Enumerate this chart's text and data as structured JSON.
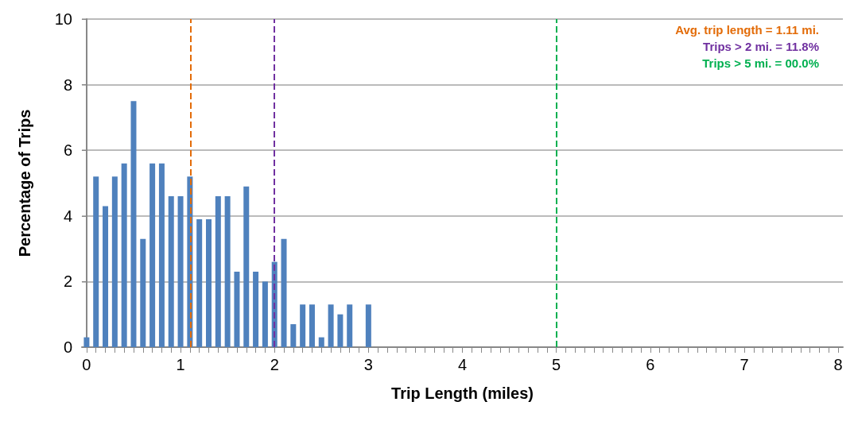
{
  "chart_data": {
    "type": "bar",
    "x": [
      0,
      0.1,
      0.2,
      0.3,
      0.4,
      0.5,
      0.6,
      0.7,
      0.8,
      0.9,
      1,
      1.1,
      1.2,
      1.3,
      1.4,
      1.5,
      1.6,
      1.7,
      1.8,
      1.9,
      2,
      2.1,
      2.2,
      2.3,
      2.4,
      2.5,
      2.6,
      2.7,
      2.8,
      2.9,
      3
    ],
    "values": [
      0.3,
      5.2,
      4.3,
      5.2,
      5.6,
      7.5,
      3.3,
      5.6,
      5.6,
      4.6,
      4.6,
      5.2,
      3.9,
      3.9,
      4.6,
      4.6,
      2.3,
      4.9,
      2.3,
      2.0,
      2.6,
      3.3,
      0.7,
      1.3,
      1.3,
      0.3,
      1.3,
      1.0,
      1.3,
      0,
      1.3
    ],
    "color": "#4f81bd",
    "xlabel": "Trip Length (miles)",
    "ylabel": "Percentage of Trips",
    "xlim": [
      -0.05,
      8.05
    ],
    "ylim": [
      0,
      10
    ],
    "xticks": [
      0,
      {
        "value": 0.1,
        "label": null
      },
      {
        "value": 0.2,
        "label": null
      },
      {
        "value": 0.3,
        "label": null
      },
      {
        "value": 0.4,
        "label": null
      },
      {
        "value": 0.5,
        "label": null
      },
      {
        "value": 0.6,
        "label": null
      },
      {
        "value": 0.7,
        "label": null
      },
      {
        "value": 0.8,
        "label": null
      },
      {
        "value": 0.9,
        "label": null
      },
      1,
      {
        "value": 1.1,
        "label": null
      },
      {
        "value": 1.2,
        "label": null
      },
      {
        "value": 1.3,
        "label": null
      },
      {
        "value": 1.4,
        "label": null
      },
      {
        "value": 1.5,
        "label": null
      },
      {
        "value": 1.6,
        "label": null
      },
      {
        "value": 1.7,
        "label": null
      },
      {
        "value": 1.8,
        "label": null
      },
      {
        "value": 1.9,
        "label": null
      },
      2,
      {
        "value": 2.1,
        "label": null
      },
      {
        "value": 2.2,
        "label": null
      },
      {
        "value": 2.3,
        "label": null
      },
      {
        "value": 2.4,
        "label": null
      },
      {
        "value": 2.5,
        "label": null
      },
      {
        "value": 2.6,
        "label": null
      },
      {
        "value": 2.7,
        "label": null
      },
      {
        "value": 2.8,
        "label": null
      },
      {
        "value": 2.9,
        "label": null
      },
      3,
      {
        "value": 3.1,
        "label": null
      },
      {
        "value": 3.2,
        "label": null
      },
      {
        "value": 3.3,
        "label": null
      },
      {
        "value": 3.4,
        "label": null
      },
      {
        "value": 3.5,
        "label": null
      },
      {
        "value": 3.6,
        "label": null
      },
      {
        "value": 3.7,
        "label": null
      },
      {
        "value": 3.8,
        "label": null
      },
      {
        "value": 3.9,
        "label": null
      },
      4,
      {
        "value": 4.1,
        "label": null
      },
      {
        "value": 4.2,
        "label": null
      },
      {
        "value": 4.3,
        "label": null
      },
      {
        "value": 4.4,
        "label": null
      },
      {
        "value": 4.5,
        "label": null
      },
      {
        "value": 4.6,
        "label": null
      },
      {
        "value": 4.7,
        "label": null
      },
      {
        "value": 4.8,
        "label": null
      },
      {
        "value": 4.9,
        "label": null
      },
      5,
      {
        "value": 5.1,
        "label": null
      },
      {
        "value": 5.2,
        "label": null
      },
      {
        "value": 5.3,
        "label": null
      },
      {
        "value": 5.4,
        "label": null
      },
      {
        "value": 5.5,
        "label": null
      },
      {
        "value": 5.6,
        "label": null
      },
      {
        "value": 5.7,
        "label": null
      },
      {
        "value": 5.8,
        "label": null
      },
      {
        "value": 5.9,
        "label": null
      },
      6,
      {
        "value": 6.1,
        "label": null
      },
      {
        "value": 6.2,
        "label": null
      },
      {
        "value": 6.3,
        "label": null
      },
      {
        "value": 6.4,
        "label": null
      },
      {
        "value": 6.5,
        "label": null
      },
      {
        "value": 6.6,
        "label": null
      },
      {
        "value": 6.7,
        "label": null
      },
      {
        "value": 6.8,
        "label": null
      },
      {
        "value": 6.9,
        "label": null
      },
      7,
      {
        "value": 7.1,
        "label": null
      },
      {
        "value": 7.2,
        "label": null
      },
      {
        "value": 7.3,
        "label": null
      },
      {
        "value": 7.4,
        "label": null
      },
      {
        "value": 7.5,
        "label": null
      },
      {
        "value": 7.6,
        "label": null
      },
      {
        "value": 7.7,
        "label": null
      },
      {
        "value": 7.8,
        "label": null
      },
      {
        "value": 7.9,
        "label": null
      },
      8
    ],
    "yticks": [
      0,
      2,
      4,
      6,
      8,
      10
    ],
    "grid": "y",
    "ref_lines": [
      {
        "axis": "x",
        "value": 1.11,
        "label": "Avg. trip length = 1.11 mi.",
        "color": "#e36c09",
        "line_style": "dashed"
      },
      {
        "axis": "x",
        "value": 2,
        "label": "Trips > 2 mi. = 11.8%",
        "color": "#7030a0",
        "line_style": "dashed"
      },
      {
        "axis": "x",
        "value": 5,
        "label": "Trips > 5 mi. = 00.0%",
        "color": "#00b050",
        "line_style": "dashed"
      }
    ]
  }
}
